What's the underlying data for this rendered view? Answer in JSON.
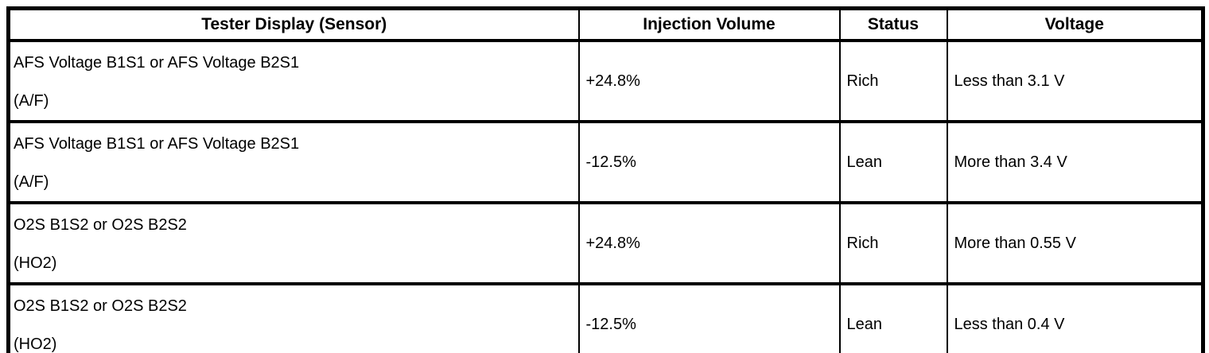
{
  "table": {
    "headers": [
      "Tester Display (Sensor)",
      "Injection Volume",
      "Status",
      "Voltage"
    ],
    "rows": [
      {
        "sensor_line1": "AFS Voltage B1S1 or AFS Voltage B2S1",
        "sensor_line2": "(A/F)",
        "injection_volume": "+24.8%",
        "status": "Rich",
        "voltage": "Less than 3.1 V"
      },
      {
        "sensor_line1": "AFS Voltage B1S1 or AFS Voltage B2S1",
        "sensor_line2": "(A/F)",
        "injection_volume": "-12.5%",
        "status": "Lean",
        "voltage": "More than 3.4 V"
      },
      {
        "sensor_line1": "O2S B1S2 or O2S B2S2",
        "sensor_line2": "(HO2)",
        "injection_volume": "+24.8%",
        "status": "Rich",
        "voltage": "More than 0.55 V"
      },
      {
        "sensor_line1": "O2S B1S2 or O2S B2S2",
        "sensor_line2": "(HO2)",
        "injection_volume": "-12.5%",
        "status": "Lean",
        "voltage": "Less than 0.4 V"
      }
    ],
    "colors": {
      "border": "#000000",
      "text": "#000000",
      "background": "#ffffff"
    }
  }
}
